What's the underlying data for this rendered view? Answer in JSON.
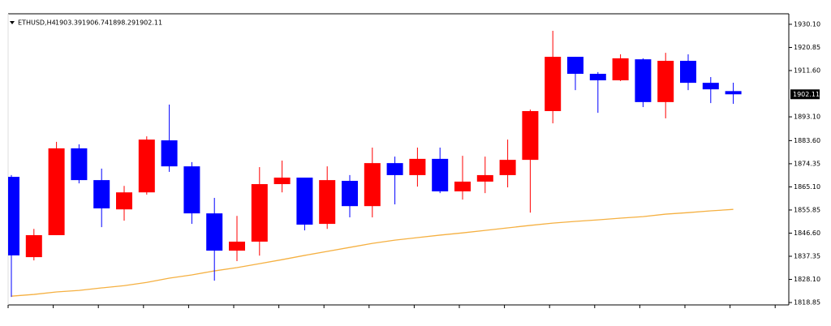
{
  "chart_data": {
    "type": "candlestick",
    "header": {
      "symbol": "ETHUSD,H4",
      "open": 1903.39,
      "high": 1906.74,
      "low": 1898.29,
      "close": 1902.11
    },
    "open": [
      1869.1,
      1837.0,
      1845.8,
      1880.5,
      1867.8,
      1856.1,
      1862.9,
      1883.7,
      1873.3,
      1854.5,
      1839.6,
      1843.2,
      1866.2,
      1868.8,
      1850.3,
      1867.5,
      1857.4,
      1874.6,
      1869.8,
      1876.3,
      1863.3,
      1867.2,
      1869.8,
      1875.9,
      1895.4,
      1917.1,
      1910.3,
      1907.7,
      1916.1,
      1899.0,
      1915.5,
      1906.7,
      1903.39
    ],
    "high": [
      1869.8,
      1848.3,
      1883.1,
      1882.1,
      1872.4,
      1865.5,
      1885.3,
      1898.0,
      1875.0,
      1860.7,
      1853.5,
      1873.0,
      1875.6,
      1868.8,
      1873.3,
      1869.8,
      1880.8,
      1877.2,
      1880.8,
      1880.8,
      1877.5,
      1877.2,
      1884.0,
      1896.0,
      1927.5,
      1917.1,
      1911.0,
      1918.1,
      1916.5,
      1918.7,
      1918.1,
      1909.0,
      1906.74
    ],
    "low": [
      1821.1,
      1835.7,
      1845.8,
      1866.5,
      1849.0,
      1851.6,
      1862.0,
      1871.1,
      1850.3,
      1827.6,
      1835.4,
      1837.6,
      1862.9,
      1847.7,
      1848.3,
      1852.9,
      1852.9,
      1858.1,
      1865.2,
      1862.6,
      1860.0,
      1862.6,
      1864.9,
      1854.8,
      1890.5,
      1903.8,
      1894.7,
      1907.4,
      1897.0,
      1892.5,
      1903.8,
      1898.6,
      1898.29
    ],
    "close": [
      1837.7,
      1845.8,
      1880.5,
      1867.8,
      1856.5,
      1862.9,
      1884.0,
      1873.3,
      1854.5,
      1839.6,
      1843.2,
      1866.2,
      1868.8,
      1850.0,
      1867.8,
      1857.4,
      1874.6,
      1869.8,
      1876.3,
      1863.3,
      1867.2,
      1869.8,
      1875.9,
      1895.4,
      1917.1,
      1910.3,
      1907.7,
      1916.5,
      1899.0,
      1915.5,
      1906.7,
      1904.1,
      1902.11
    ],
    "up_color": "#ff0000",
    "down_color": "#0000ff",
    "ma_values": [
      1821.4,
      1822.1,
      1823.1,
      1823.7,
      1824.7,
      1825.6,
      1826.9,
      1828.6,
      1829.9,
      1831.5,
      1832.8,
      1834.4,
      1836.0,
      1837.7,
      1839.3,
      1840.9,
      1842.5,
      1843.8,
      1844.8,
      1845.8,
      1846.7,
      1847.7,
      1848.7,
      1849.7,
      1850.6,
      1851.3,
      1851.9,
      1852.6,
      1853.2,
      1854.2,
      1854.8,
      1855.5,
      1856.1
    ],
    "ma_color": "#f5b041",
    "ylim": [
      1817.9,
      1934.3
    ],
    "yticks": [
      {
        "value": 1930.1,
        "label": "1930.10"
      },
      1920.85,
      {
        "value": 1911.6,
        "label": "1911.60"
      },
      {
        "value": 1893.1,
        "label": "1893.10"
      },
      {
        "value": 1883.6,
        "label": "1883.60"
      },
      1874.35,
      {
        "value": 1865.1,
        "label": "1865.10"
      },
      1855.85,
      {
        "value": 1846.6,
        "label": "1846.60"
      },
      1837.35,
      {
        "value": 1828.1,
        "label": "1828.10"
      },
      1818.85
    ]
  }
}
